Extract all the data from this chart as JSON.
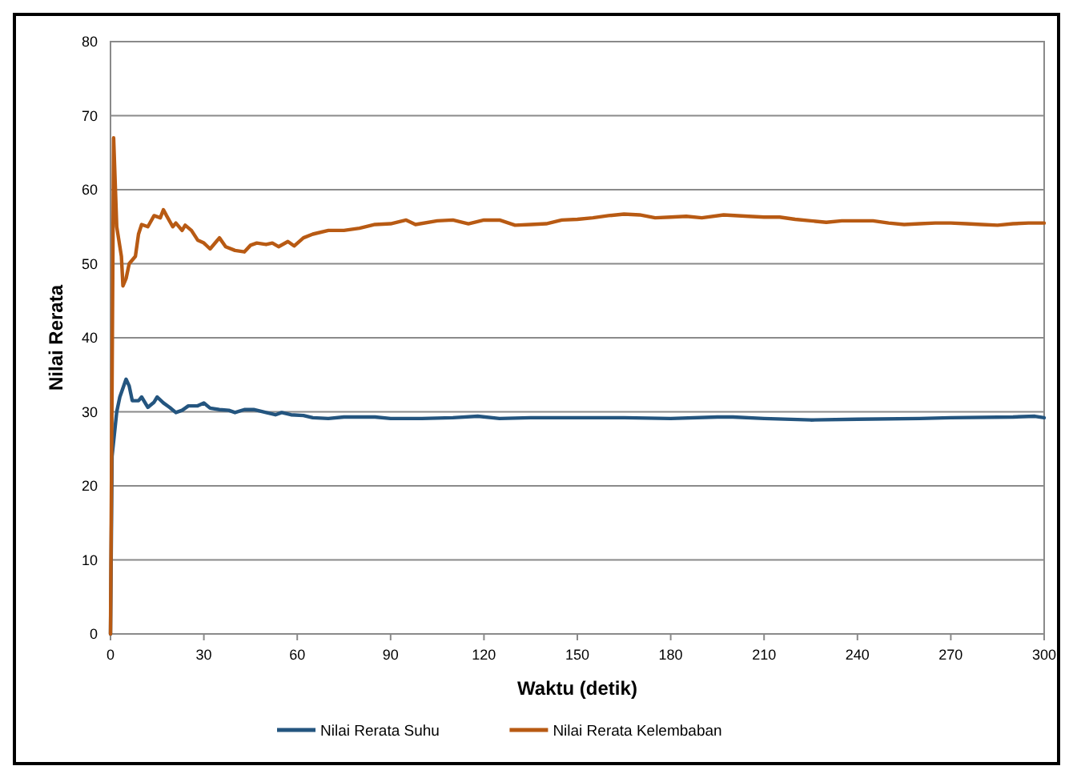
{
  "chart_data": {
    "type": "line",
    "xlabel": "Waktu (detik)",
    "ylabel": "Nilai Rerata",
    "xlim": [
      0,
      300
    ],
    "xticks": [
      0,
      30,
      60,
      90,
      120,
      150,
      180,
      210,
      240,
      270,
      300
    ],
    "ylim": [
      0,
      80
    ],
    "yticks": [
      0,
      10,
      20,
      30,
      40,
      50,
      60,
      70,
      80
    ],
    "grid": "y",
    "legend": "bottom",
    "marker": "none",
    "line_style": "solid",
    "series": [
      {
        "name": "Nilai Rerata Suhu",
        "color": "#24557f",
        "x": [
          0,
          0.5,
          2,
          3,
          5,
          6,
          7,
          9,
          10,
          12,
          14,
          15,
          17,
          19,
          21,
          23,
          25,
          28,
          30,
          32,
          35,
          38,
          40,
          43,
          46,
          50,
          53,
          55,
          58,
          62,
          65,
          70,
          75,
          80,
          85,
          90,
          100,
          110,
          118,
          125,
          135,
          145,
          155,
          165,
          180,
          195,
          200,
          210,
          225,
          240,
          260,
          270,
          290,
          297,
          300
        ],
        "values": [
          0,
          24,
          30,
          32,
          34.4,
          33.5,
          31.5,
          31.5,
          32,
          30.6,
          31.3,
          32,
          31.2,
          30.6,
          29.9,
          30.2,
          30.8,
          30.8,
          31.2,
          30.5,
          30.3,
          30.2,
          29.9,
          30.3,
          30.3,
          29.9,
          29.6,
          29.9,
          29.6,
          29.5,
          29.2,
          29.1,
          29.3,
          29.3,
          29.3,
          29.1,
          29.1,
          29.2,
          29.4,
          29.1,
          29.2,
          29.2,
          29.2,
          29.2,
          29.1,
          29.3,
          29.3,
          29.1,
          28.9,
          29,
          29.1,
          29.2,
          29.3,
          29.4,
          29.2
        ]
      },
      {
        "name": "Nilai Rerata Kelembaban",
        "color": "#b85a13",
        "x": [
          0,
          1,
          2,
          3.5,
          4,
          5,
          6,
          8,
          9,
          10,
          12,
          14,
          16,
          17,
          18,
          20,
          21,
          23,
          24,
          26,
          28,
          30,
          32,
          34,
          35,
          37,
          40,
          43,
          45,
          47,
          50,
          52,
          54,
          57,
          59,
          62,
          65,
          70,
          75,
          80,
          85,
          90,
          95,
          98,
          105,
          110,
          115,
          120,
          125,
          130,
          135,
          140,
          145,
          150,
          155,
          160,
          165,
          170,
          175,
          180,
          185,
          190,
          197,
          205,
          210,
          215,
          220,
          225,
          230,
          235,
          240,
          245,
          250,
          255,
          260,
          265,
          270,
          275,
          280,
          285,
          290,
          295,
          300
        ],
        "values": [
          0,
          67,
          55,
          51,
          47,
          48,
          50,
          51,
          54,
          55.3,
          55,
          56.5,
          56.2,
          57.3,
          56.5,
          55,
          55.5,
          54.5,
          55.2,
          54.5,
          53.2,
          52.8,
          52,
          53,
          53.5,
          52.3,
          51.8,
          51.6,
          52.5,
          52.8,
          52.6,
          52.8,
          52.3,
          53,
          52.4,
          53.5,
          54,
          54.5,
          54.5,
          54.8,
          55.3,
          55.4,
          55.9,
          55.3,
          55.8,
          55.9,
          55.4,
          55.9,
          55.9,
          55.2,
          55.3,
          55.4,
          55.9,
          56,
          56.2,
          56.5,
          56.7,
          56.6,
          56.2,
          56.3,
          56.4,
          56.2,
          56.6,
          56.4,
          56.3,
          56.3,
          56,
          55.8,
          55.6,
          55.8,
          55.8,
          55.8,
          55.5,
          55.3,
          55.4,
          55.5,
          55.5,
          55.4,
          55.3,
          55.2,
          55.4,
          55.5,
          55.5
        ]
      }
    ]
  }
}
